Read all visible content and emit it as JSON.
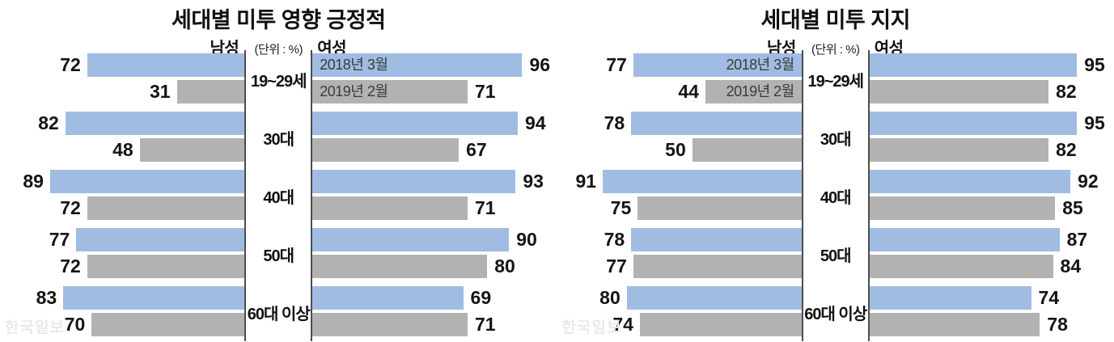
{
  "colors": {
    "series_2018": "#a0bce2",
    "series_2019": "#b2b2b2",
    "axis_line": "#4d4d4d",
    "value_text": "#141414",
    "legend_text": "#3b3b3b",
    "watermark": "#e9e9ee"
  },
  "chart_data": [
    {
      "type": "bar",
      "orientation": "horizontal",
      "layout": "population-pyramid",
      "title": "세대별 미투 영향 긍정적",
      "unit_label": "(단위 : %)",
      "group_labels": {
        "left": "남성",
        "right": "여성"
      },
      "categories": [
        "19~29세",
        "30대",
        "40대",
        "50대",
        "60대 이상"
      ],
      "xlim": [
        0,
        100
      ],
      "grid": false,
      "legend_position": "inside-female-bars",
      "watermark": "한국일보",
      "series": [
        {
          "name": "2018년 3월",
          "side": "male",
          "values": [
            72,
            82,
            89,
            77,
            83
          ]
        },
        {
          "name": "2019년 2월",
          "side": "male",
          "values": [
            31,
            48,
            72,
            72,
            70
          ]
        },
        {
          "name": "2018년 3월",
          "side": "female",
          "values": [
            96,
            94,
            93,
            90,
            69
          ]
        },
        {
          "name": "2019년 2월",
          "side": "female",
          "values": [
            71,
            67,
            71,
            80,
            71
          ]
        }
      ]
    },
    {
      "type": "bar",
      "orientation": "horizontal",
      "layout": "population-pyramid",
      "title": "세대별 미투 지지",
      "unit_label": "(단위 : %)",
      "group_labels": {
        "left": "남성",
        "right": "여성"
      },
      "categories": [
        "19~29세",
        "30대",
        "40대",
        "50대",
        "60대 이상"
      ],
      "xlim": [
        0,
        100
      ],
      "grid": false,
      "legend_position": "inside-male-bars",
      "watermark": "한국일보",
      "series": [
        {
          "name": "2018년 3월",
          "side": "male",
          "values": [
            77,
            78,
            91,
            78,
            80
          ]
        },
        {
          "name": "2019년 2월",
          "side": "male",
          "values": [
            44,
            50,
            75,
            77,
            74
          ]
        },
        {
          "name": "2018년 3월",
          "side": "female",
          "values": [
            95,
            95,
            92,
            87,
            74
          ]
        },
        {
          "name": "2019년 2월",
          "side": "female",
          "values": [
            82,
            82,
            85,
            84,
            78
          ]
        }
      ]
    }
  ]
}
